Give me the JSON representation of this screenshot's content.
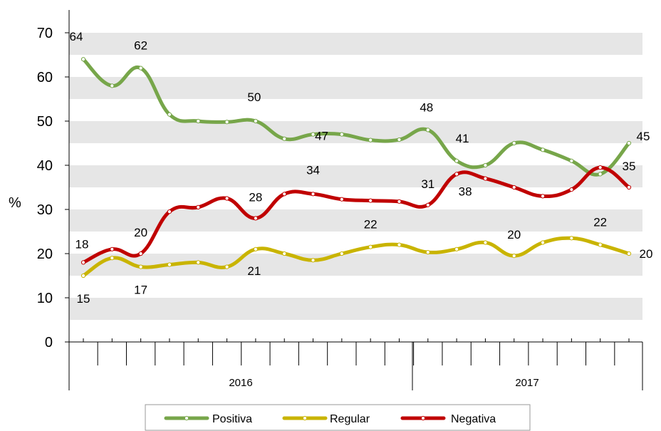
{
  "chart_data": {
    "type": "line",
    "ylabel": "%",
    "ylim": [
      0,
      70
    ],
    "yticks": [
      "0",
      "10",
      "20",
      "30",
      "40",
      "50",
      "60",
      "70"
    ],
    "yticks_values": [
      0,
      10,
      20,
      30,
      40,
      50,
      60,
      70
    ],
    "grid": "alternating horizontal bands",
    "legend_position": "bottom",
    "years": [
      "2016",
      "2017"
    ],
    "series": [
      {
        "name": "Positiva",
        "color": "#77a64a",
        "values": [
          64,
          58,
          62,
          51.5,
          50,
          49.8,
          50,
          46,
          47,
          47,
          45.7,
          45.8,
          48,
          41,
          40,
          45,
          43.5,
          41,
          38,
          45
        ],
        "labels": {
          "0": "64",
          "2": "62",
          "6": "50",
          "8": "47",
          "12": "48",
          "13": "41",
          "19": "45"
        }
      },
      {
        "name": "Regular",
        "color": "#c9b400",
        "values": [
          15,
          19,
          17,
          17.5,
          18,
          17,
          21,
          20,
          18.5,
          20,
          21.5,
          22,
          20.3,
          21,
          22.5,
          19.5,
          22.5,
          23.5,
          22,
          20
        ],
        "labels": {
          "0": "15",
          "2": "17",
          "6": "21",
          "10": "22",
          "15": "20",
          "18": "22",
          "19": "20"
        }
      },
      {
        "name": "Negativa",
        "color": "#c00000",
        "values": [
          18,
          21,
          20,
          29.5,
          30.5,
          32.5,
          28,
          33.5,
          33.5,
          32.3,
          32,
          31.8,
          31,
          38,
          37,
          35,
          33,
          34.5,
          39.5,
          35
        ],
        "labels": {
          "0": "18",
          "2": "20",
          "6": "28",
          "8": "34",
          "12": "31",
          "13": "38",
          "19": "35"
        }
      }
    ]
  }
}
